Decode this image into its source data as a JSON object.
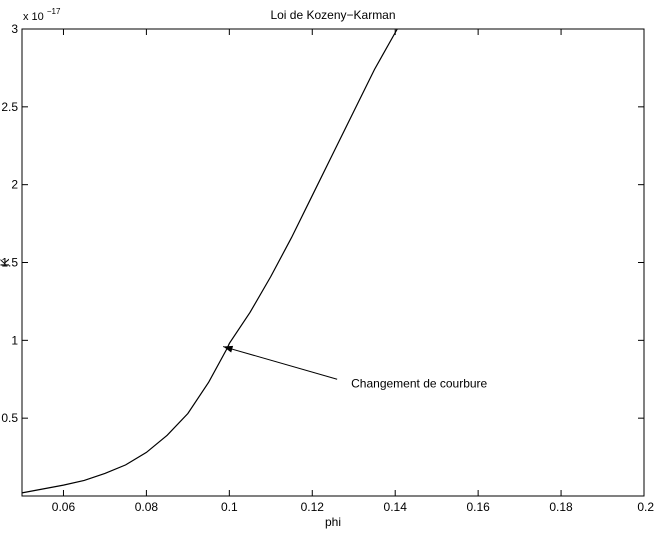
{
  "chart_data": {
    "type": "line",
    "title": "Loi de Kozeny−Karman",
    "xlabel": "phi",
    "ylabel": "K",
    "y_scale_base": "x 10",
    "y_scale_exponent": "−17",
    "xlim": [
      0.05,
      0.2
    ],
    "ylim": [
      0,
      3
    ],
    "grid": false,
    "x_ticks": [
      0.06,
      0.08,
      0.1,
      0.12,
      0.14,
      0.16,
      0.18,
      0.2
    ],
    "x_tick_labels": [
      "0.06",
      "0.08",
      "0.1",
      "0.12",
      "0.14",
      "0.16",
      "0.18",
      "0.2"
    ],
    "y_ticks": [
      0.5,
      1,
      1.5,
      2,
      2.5,
      3
    ],
    "y_tick_labels": [
      "0.5",
      "1",
      "1.5",
      "2",
      "2.5",
      "3"
    ],
    "series": [
      {
        "x": [
          0.05,
          0.055,
          0.06,
          0.065,
          0.07,
          0.075,
          0.08,
          0.085,
          0.09,
          0.095,
          0.0995,
          0.1,
          0.105,
          0.11,
          0.115,
          0.12,
          0.125,
          0.13,
          0.135,
          0.1405
        ],
        "y": [
          0.02,
          0.045,
          0.07,
          0.1,
          0.145,
          0.2,
          0.28,
          0.39,
          0.53,
          0.73,
          0.95,
          0.98,
          1.18,
          1.41,
          1.66,
          1.93,
          2.2,
          2.47,
          2.74,
          3.0
        ]
      }
    ],
    "annotations": [
      {
        "text": "Changement de courbure",
        "arrow_from": [
          0.126,
          0.75
        ],
        "arrow_to": [
          0.0985,
          0.96
        ]
      }
    ]
  }
}
